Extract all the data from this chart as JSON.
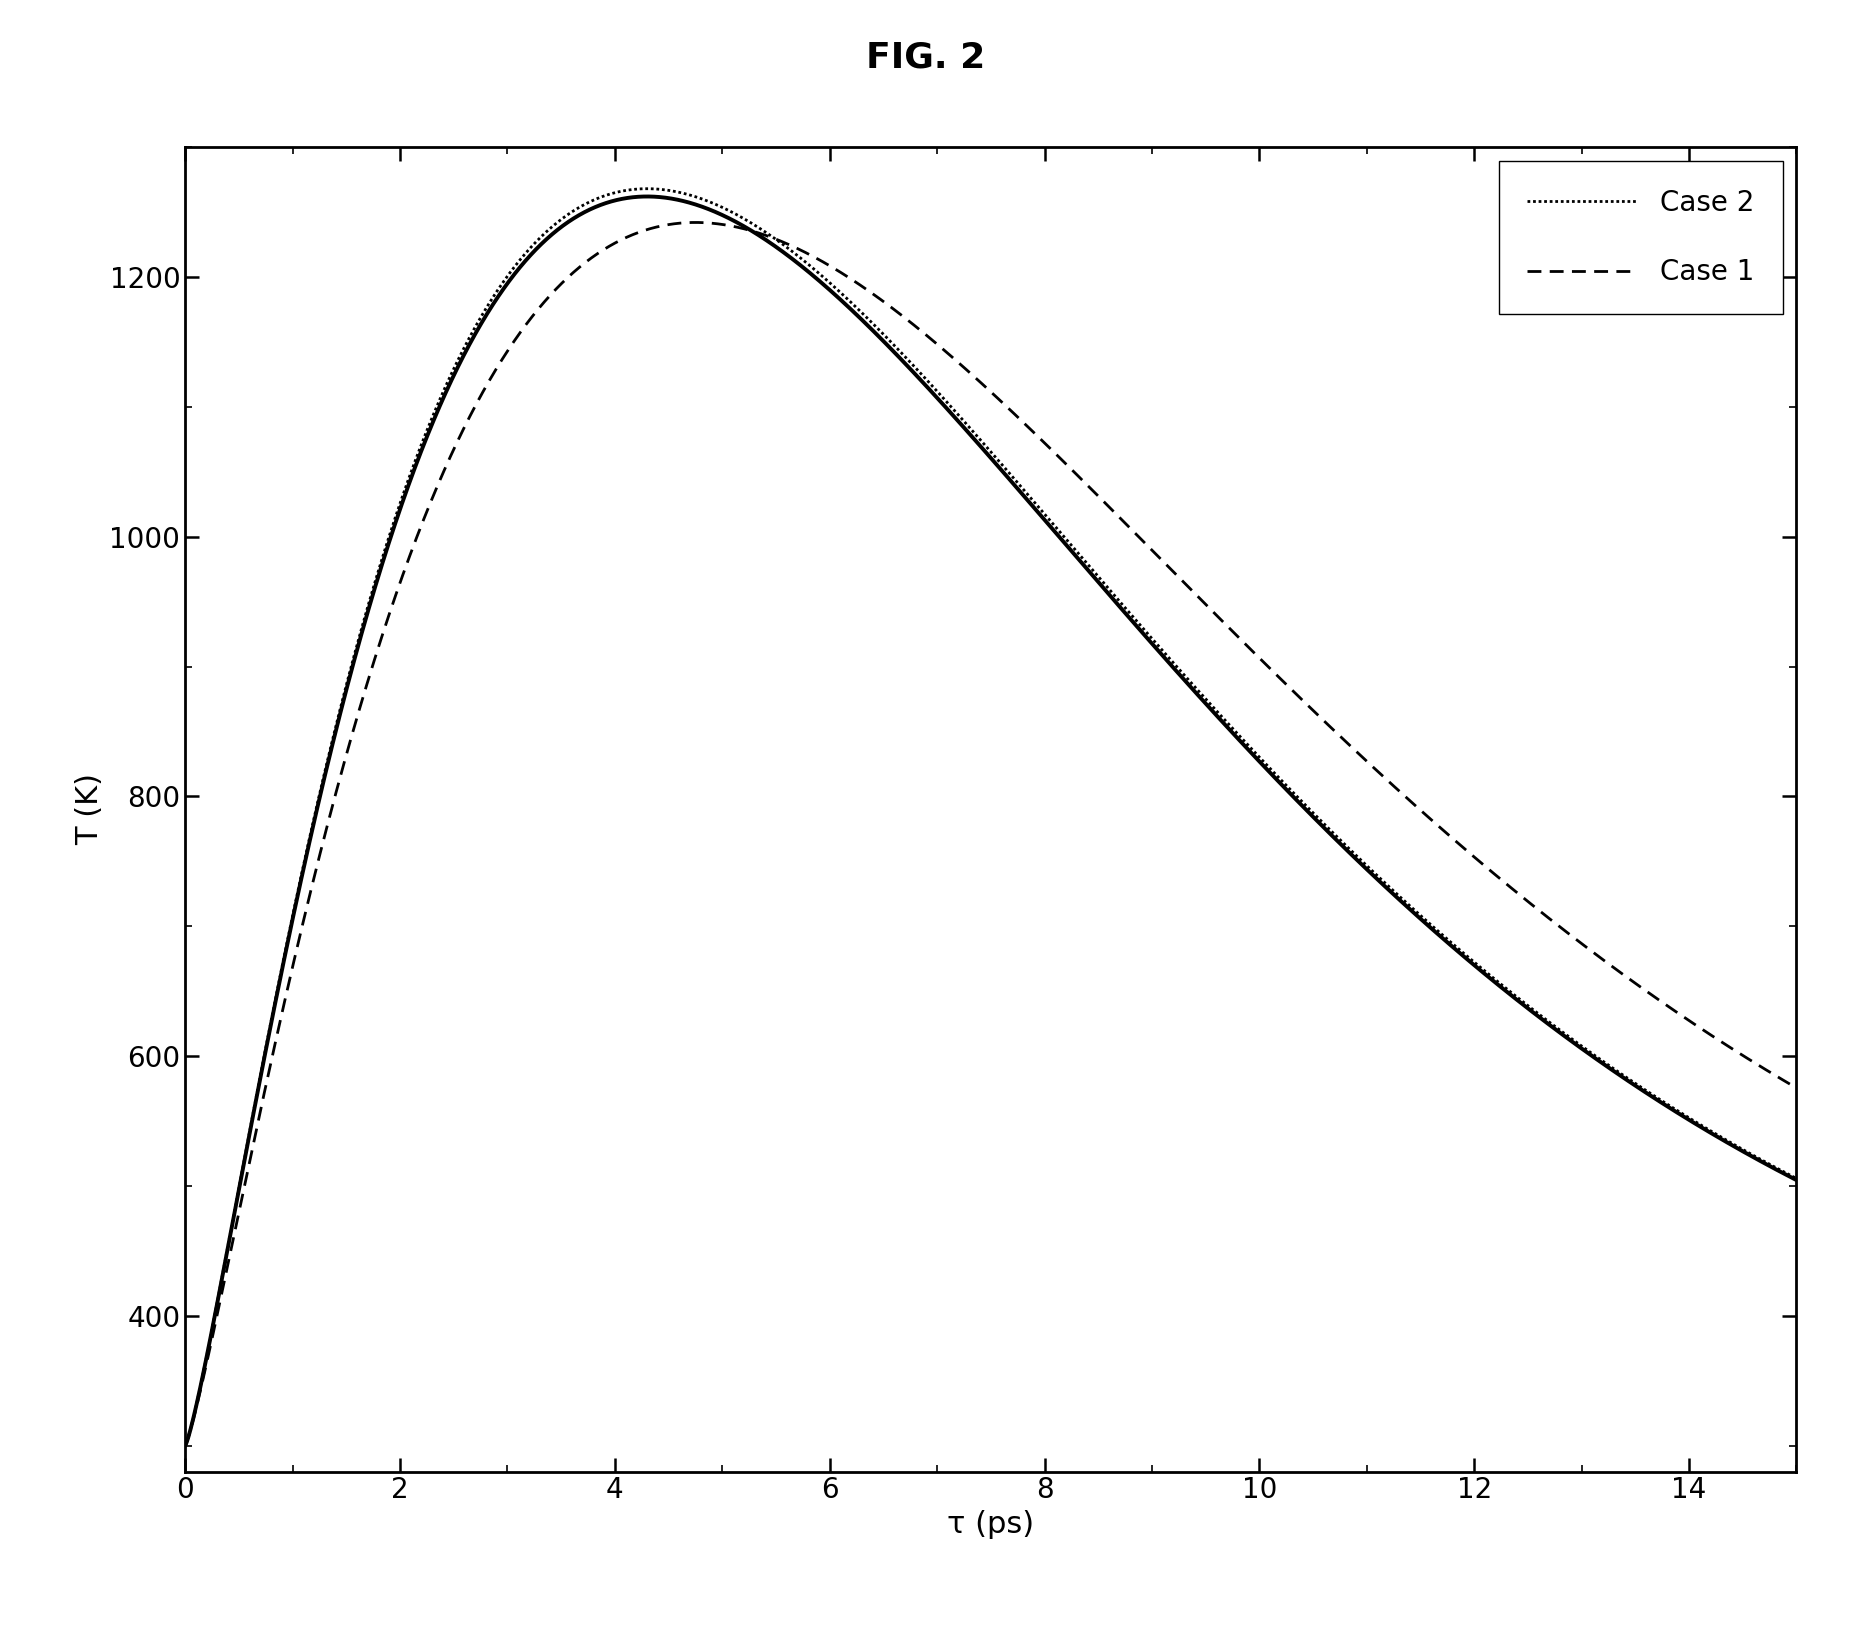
{
  "title": "FIG. 2",
  "xlabel": "τ (ps)",
  "ylabel": "T (K)",
  "xlim": [
    0,
    15
  ],
  "ylim": [
    280,
    1300
  ],
  "yticks": [
    400,
    600,
    800,
    1000,
    1200
  ],
  "xticks": [
    0,
    2,
    4,
    6,
    8,
    10,
    12,
    14
  ],
  "background_color": "#ffffff",
  "line_color": "#000000",
  "legend_labels": [
    "Case 2",
    "Case 1"
  ],
  "title_fontsize": 26,
  "label_fontsize": 22,
  "tick_fontsize": 20,
  "legend_fontsize": 20,
  "T0": 300,
  "solid_peak_t": 4.35,
  "solid_peak_T": 1262,
  "solid_n": 2.8,
  "solid_decay": 0.37,
  "case2_peak_t": 4.3,
  "case2_peak_T": 1268,
  "case2_n": 2.8,
  "case2_decay": 0.375,
  "case1_peak_t": 4.75,
  "case1_peak_T": 1242,
  "case1_n": 2.6,
  "case1_decay": 0.34
}
